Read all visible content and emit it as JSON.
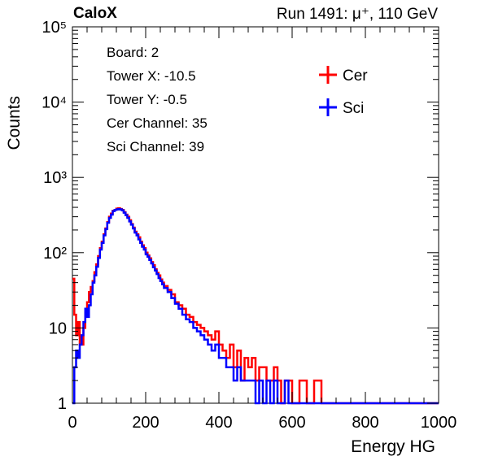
{
  "header": {
    "brand": "CaloX",
    "run_info": "Run 1491:   μ⁺, 110 GeV"
  },
  "info_box": {
    "board": "Board: 2",
    "tower_x": "Tower X: -10.5",
    "tower_y": "Tower Y: -0.5",
    "cer_channel": "Cer Channel: 35",
    "sci_channel": "Sci Channel: 39"
  },
  "chart_data": {
    "type": "line",
    "subtype": "step histogram",
    "title": "",
    "xlabel": "Energy HG",
    "ylabel": "Counts",
    "xlim": [
      0,
      1000
    ],
    "ylim": [
      1,
      100000
    ],
    "yscale": "log",
    "xticks": [
      0,
      200,
      400,
      600,
      800,
      1000
    ],
    "xtick_labels": [
      "0",
      "200",
      "400",
      "600",
      "800",
      "1000"
    ],
    "yticks": [
      1,
      10,
      100,
      1000,
      10000,
      100000
    ],
    "ytick_labels": [
      "1",
      "10",
      "10²",
      "10³",
      "10⁴",
      "10⁵"
    ],
    "legend_position": "top-right",
    "bin_width": 5,
    "series": [
      {
        "name": "Cer",
        "color": "#ff0000",
        "x": [
          0,
          5,
          10,
          15,
          20,
          25,
          30,
          35,
          40,
          45,
          50,
          55,
          60,
          65,
          70,
          75,
          80,
          85,
          90,
          95,
          100,
          105,
          110,
          115,
          120,
          125,
          130,
          135,
          140,
          145,
          150,
          155,
          160,
          165,
          170,
          175,
          180,
          185,
          190,
          195,
          200,
          205,
          210,
          215,
          220,
          225,
          230,
          235,
          240,
          245,
          250,
          260,
          270,
          280,
          290,
          300,
          310,
          320,
          330,
          340,
          350,
          360,
          370,
          380,
          390,
          400,
          410,
          420,
          430,
          440,
          450,
          460,
          470,
          480,
          490,
          500,
          510,
          520,
          530,
          540,
          550,
          560,
          570,
          580,
          590,
          600,
          620,
          640,
          660,
          680,
          700,
          720,
          740,
          760,
          780,
          800,
          820,
          840,
          860,
          880,
          900,
          920,
          940,
          960,
          980,
          995
        ],
        "values": [
          45,
          15,
          8,
          12,
          6,
          6,
          10,
          16,
          22,
          30,
          35,
          42,
          55,
          70,
          90,
          115,
          140,
          175,
          210,
          255,
          300,
          330,
          360,
          370,
          385,
          390,
          380,
          370,
          345,
          320,
          300,
          270,
          240,
          215,
          190,
          175,
          160,
          140,
          125,
          115,
          100,
          92,
          84,
          75,
          68,
          60,
          54,
          50,
          44,
          40,
          36,
          32,
          28,
          22,
          20,
          18,
          15,
          14,
          12,
          11,
          10,
          9,
          8,
          7,
          9,
          6,
          5,
          4,
          6,
          3,
          5,
          2,
          4,
          3,
          4,
          2,
          3,
          3,
          2,
          2,
          3,
          2,
          1,
          2,
          2,
          1,
          2,
          1,
          2,
          1,
          1,
          1,
          1,
          1,
          1,
          1,
          1,
          1,
          1,
          1,
          1,
          1,
          1,
          1,
          1,
          1
        ]
      },
      {
        "name": "Sci",
        "color": "#0000ff",
        "x": [
          0,
          5,
          10,
          15,
          20,
          25,
          30,
          35,
          40,
          45,
          50,
          55,
          60,
          65,
          70,
          75,
          80,
          85,
          90,
          95,
          100,
          105,
          110,
          115,
          120,
          125,
          130,
          135,
          140,
          145,
          150,
          155,
          160,
          165,
          170,
          175,
          180,
          185,
          190,
          195,
          200,
          205,
          210,
          215,
          220,
          225,
          230,
          235,
          240,
          245,
          250,
          260,
          270,
          280,
          290,
          300,
          310,
          320,
          330,
          340,
          350,
          360,
          370,
          380,
          390,
          400,
          410,
          420,
          430,
          440,
          450,
          460,
          470,
          480,
          490,
          500,
          510,
          520,
          530,
          540,
          550,
          560,
          570,
          580,
          590,
          600,
          620,
          640,
          660,
          680,
          700,
          720,
          740,
          760,
          780,
          800,
          820,
          840,
          860,
          880,
          900,
          920,
          940,
          960,
          980,
          995
        ],
        "values": [
          1,
          3,
          5,
          4,
          6,
          8,
          12,
          18,
          14,
          20,
          28,
          40,
          50,
          65,
          85,
          110,
          135,
          170,
          205,
          250,
          290,
          320,
          355,
          370,
          375,
          380,
          375,
          365,
          340,
          315,
          290,
          260,
          235,
          210,
          185,
          170,
          150,
          135,
          120,
          110,
          95,
          88,
          80,
          72,
          64,
          58,
          52,
          46,
          42,
          38,
          34,
          30,
          25,
          21,
          18,
          15,
          13,
          12,
          10,
          9,
          8,
          7,
          6,
          5,
          6,
          4,
          4,
          3,
          3,
          2,
          3,
          2,
          2,
          2,
          2,
          1,
          2,
          1,
          2,
          1,
          2,
          1,
          1,
          2,
          1,
          1,
          1,
          1,
          1,
          1,
          1,
          1,
          1,
          1,
          1,
          1,
          1,
          1,
          1,
          1,
          1,
          1,
          1,
          1,
          1,
          1
        ]
      }
    ]
  }
}
